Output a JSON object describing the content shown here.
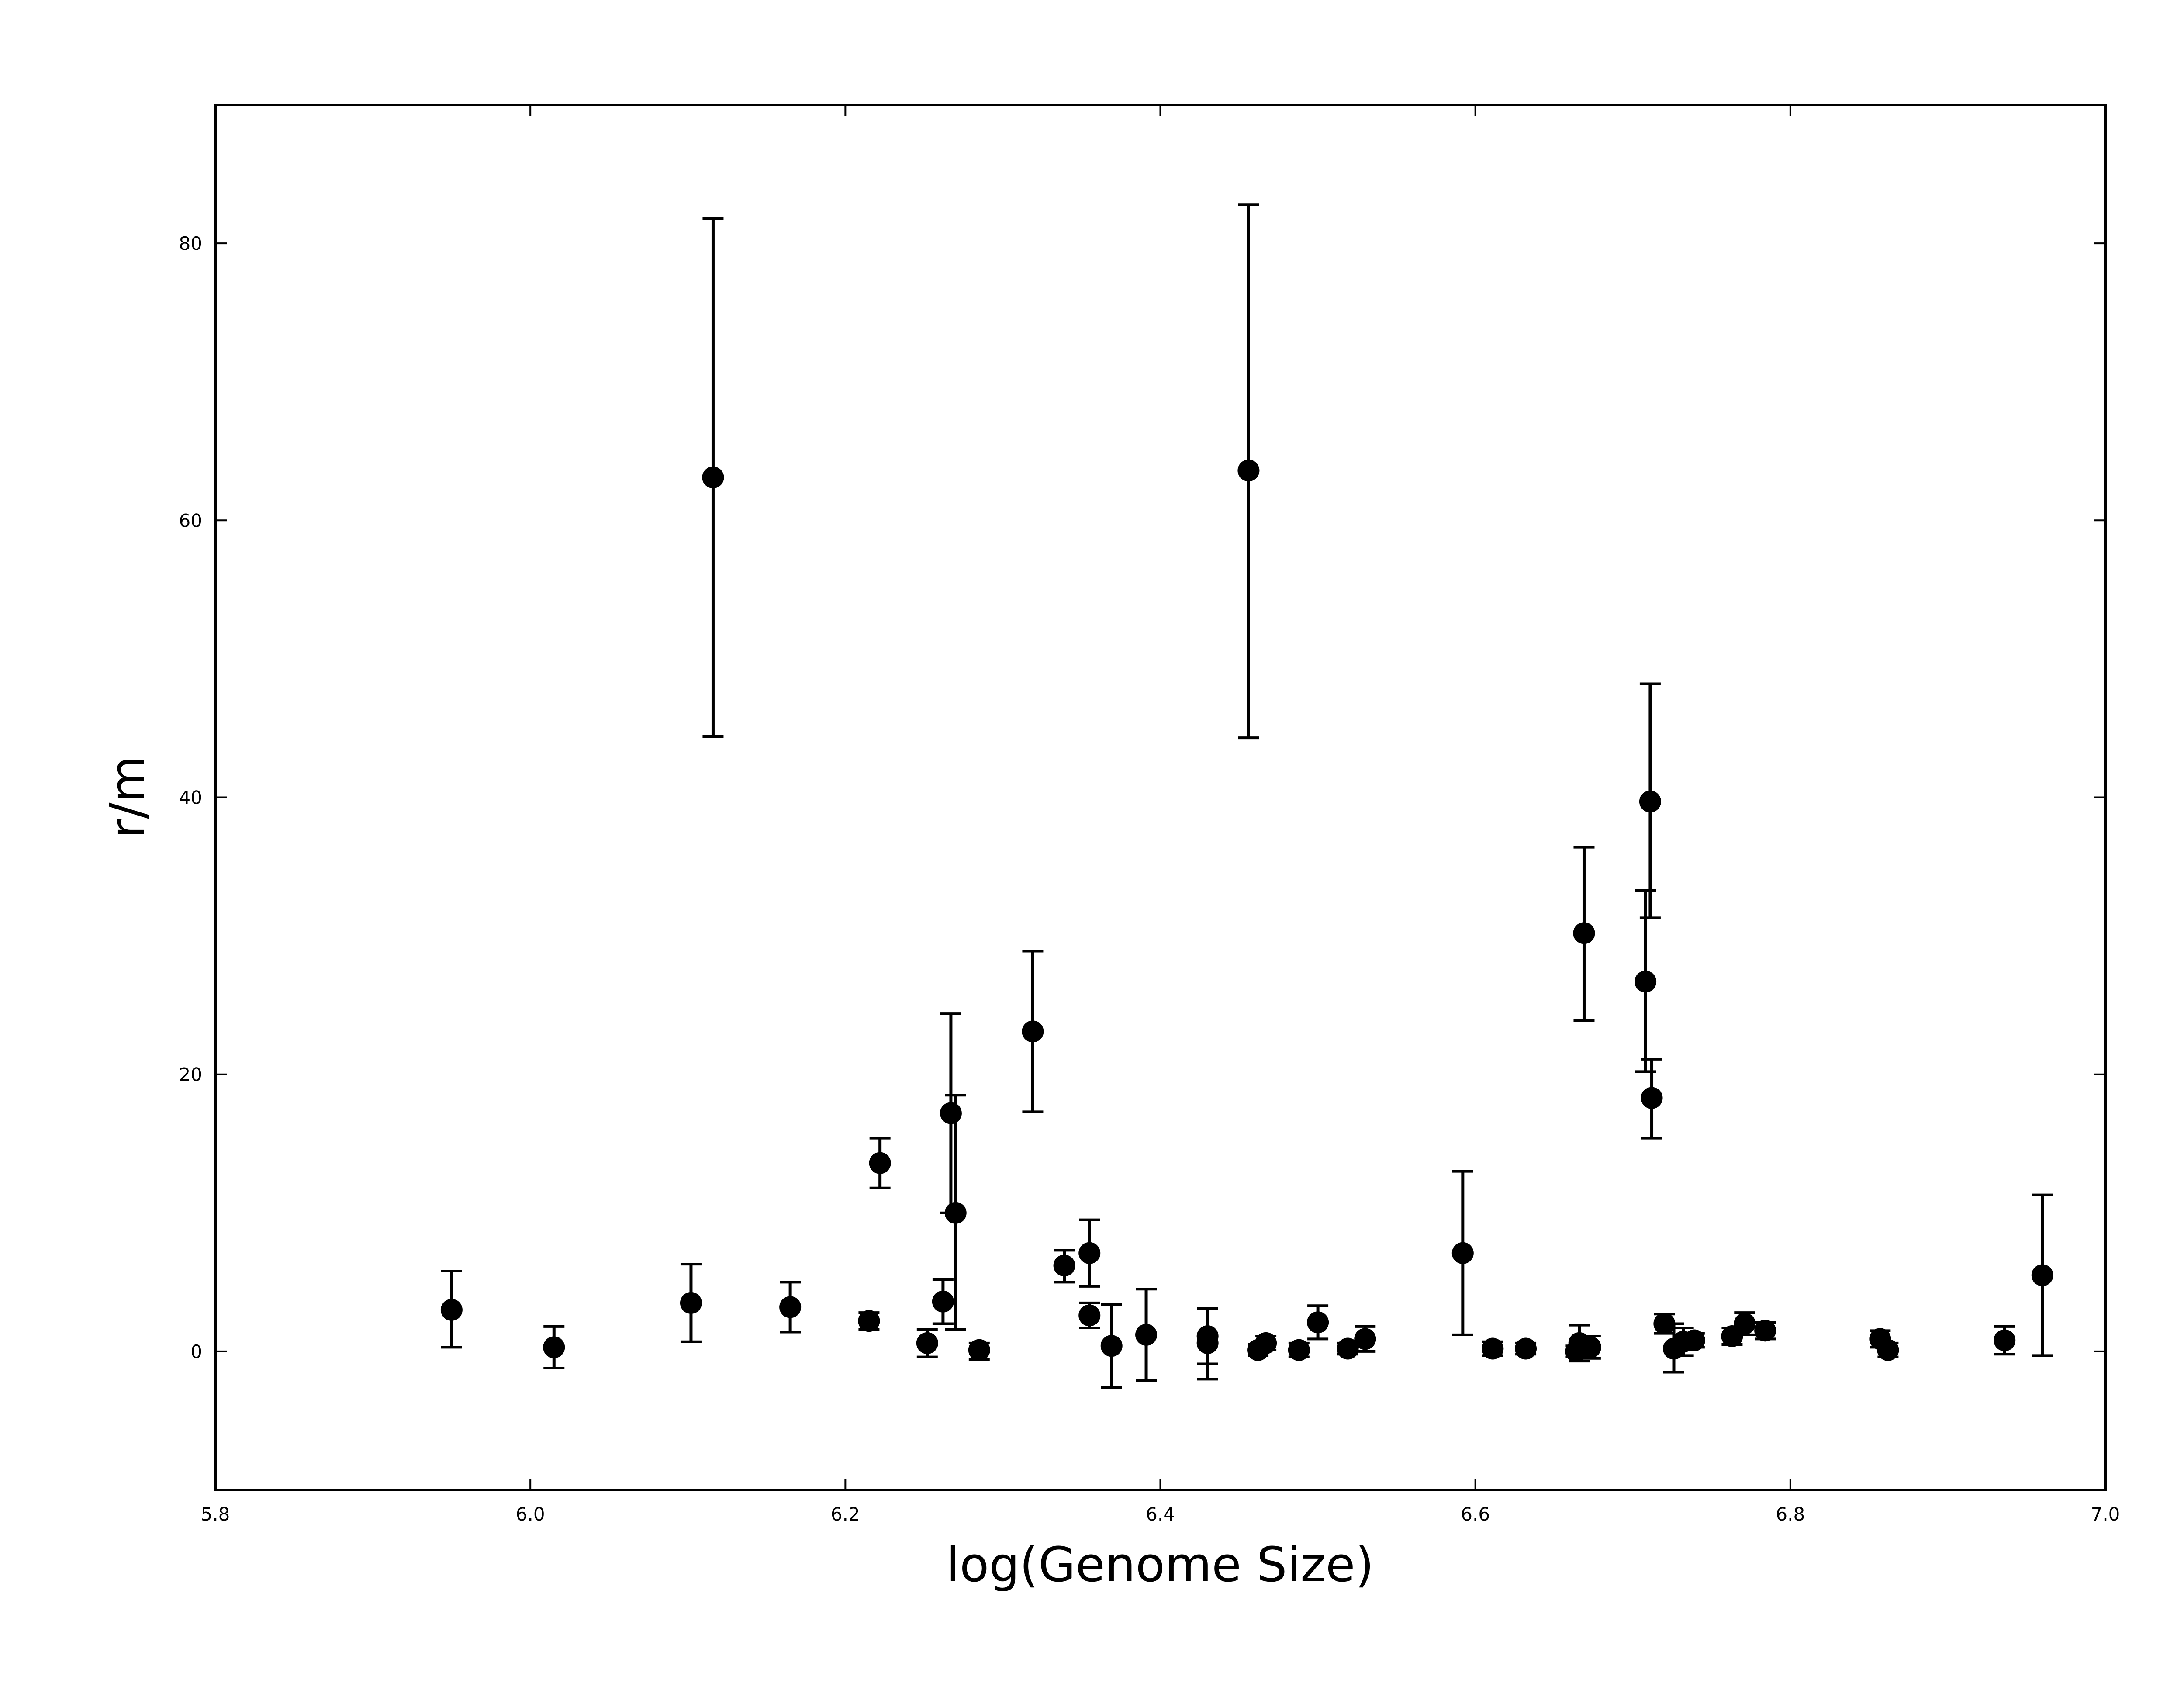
{
  "chart_data": {
    "type": "scatter",
    "title": "",
    "xlabel": "log(Genome Size)",
    "ylabel": "r/m",
    "xlim": [
      5.8,
      7.0
    ],
    "ylim": [
      -10,
      90
    ],
    "xticks": [
      5.8,
      6.0,
      6.2,
      6.4,
      6.6,
      6.8,
      7.0
    ],
    "xtick_labels": [
      "5.8",
      "6.0",
      "6.2",
      "6.4",
      "6.6",
      "6.8",
      "7.0"
    ],
    "yticks": [
      0,
      20,
      40,
      60,
      80
    ],
    "ytick_labels": [
      "0",
      "20",
      "40",
      "60",
      "80"
    ],
    "grid": false,
    "legend": "none",
    "marker_color": "#000000",
    "error_bars": true,
    "series": [
      {
        "points": [
          {
            "x": 5.95,
            "y": 3.0,
            "lo": 0.3,
            "hi": 5.8
          },
          {
            "x": 6.015,
            "y": 0.3,
            "lo": -1.2,
            "hi": 1.8
          },
          {
            "x": 6.102,
            "y": 3.5,
            "lo": 0.7,
            "hi": 6.3
          },
          {
            "x": 6.116,
            "y": 63.1,
            "lo": 44.4,
            "hi": 81.8
          },
          {
            "x": 6.165,
            "y": 3.2,
            "lo": 1.4,
            "hi": 5.0
          },
          {
            "x": 6.215,
            "y": 2.2,
            "lo": 1.6,
            "hi": 2.8
          },
          {
            "x": 6.222,
            "y": 13.6,
            "lo": 11.8,
            "hi": 15.4
          },
          {
            "x": 6.252,
            "y": 0.6,
            "lo": -0.4,
            "hi": 1.6
          },
          {
            "x": 6.262,
            "y": 3.6,
            "lo": 2.0,
            "hi": 5.2
          },
          {
            "x": 6.267,
            "y": 17.2,
            "lo": 10.0,
            "hi": 24.4
          },
          {
            "x": 6.27,
            "y": 10.0,
            "lo": 1.6,
            "hi": 18.5
          },
          {
            "x": 6.285,
            "y": 0.1,
            "lo": -0.6,
            "hi": 0.6
          },
          {
            "x": 6.319,
            "y": 23.1,
            "lo": 17.3,
            "hi": 28.9
          },
          {
            "x": 6.339,
            "y": 6.2,
            "lo": 5.0,
            "hi": 7.3
          },
          {
            "x": 6.355,
            "y": 7.1,
            "lo": 4.7,
            "hi": 9.5
          },
          {
            "x": 6.355,
            "y": 2.6,
            "lo": 1.7,
            "hi": 3.5
          },
          {
            "x": 6.369,
            "y": 0.4,
            "lo": -2.6,
            "hi": 3.4
          },
          {
            "x": 6.391,
            "y": 1.2,
            "lo": -2.1,
            "hi": 4.5
          },
          {
            "x": 6.43,
            "y": 1.1,
            "lo": -0.9,
            "hi": 3.1
          },
          {
            "x": 6.43,
            "y": 0.6,
            "lo": -2.0,
            "hi": 3.1
          },
          {
            "x": 6.456,
            "y": 63.6,
            "lo": 44.3,
            "hi": 82.8
          },
          {
            "x": 6.462,
            "y": 0.1,
            "lo": -0.3,
            "hi": 0.5
          },
          {
            "x": 6.467,
            "y": 0.6,
            "lo": 0.1,
            "hi": 1.1
          },
          {
            "x": 6.488,
            "y": 0.1,
            "lo": -0.4,
            "hi": 0.6
          },
          {
            "x": 6.5,
            "y": 2.1,
            "lo": 0.9,
            "hi": 3.3
          },
          {
            "x": 6.519,
            "y": 0.2,
            "lo": -0.2,
            "hi": 0.6
          },
          {
            "x": 6.53,
            "y": 0.9,
            "lo": 0.0,
            "hi": 1.8
          },
          {
            "x": 6.592,
            "y": 7.1,
            "lo": 1.2,
            "hi": 13.0
          },
          {
            "x": 6.611,
            "y": 0.2,
            "lo": -0.3,
            "hi": 0.7
          },
          {
            "x": 6.632,
            "y": 0.2,
            "lo": -0.2,
            "hi": 0.6
          },
          {
            "x": 6.664,
            "y": 0.0,
            "lo": -0.4,
            "hi": 0.4
          },
          {
            "x": 6.666,
            "y": 0.6,
            "lo": -0.7,
            "hi": 1.9
          },
          {
            "x": 6.669,
            "y": 30.2,
            "lo": 23.9,
            "hi": 36.4
          },
          {
            "x": 6.673,
            "y": 0.3,
            "lo": -0.5,
            "hi": 1.1
          },
          {
            "x": 6.708,
            "y": 26.7,
            "lo": 20.2,
            "hi": 33.3
          },
          {
            "x": 6.711,
            "y": 39.7,
            "lo": 31.3,
            "hi": 48.2
          },
          {
            "x": 6.712,
            "y": 18.3,
            "lo": 15.4,
            "hi": 21.1
          },
          {
            "x": 6.72,
            "y": 2.0,
            "lo": 1.3,
            "hi": 2.7
          },
          {
            "x": 6.726,
            "y": 0.2,
            "lo": -1.5,
            "hi": 2.0
          },
          {
            "x": 6.732,
            "y": 0.7,
            "lo": -0.3,
            "hi": 1.7
          },
          {
            "x": 6.739,
            "y": 0.8,
            "lo": 0.3,
            "hi": 1.3
          },
          {
            "x": 6.763,
            "y": 1.1,
            "lo": 0.5,
            "hi": 1.7
          },
          {
            "x": 6.771,
            "y": 2.0,
            "lo": 1.2,
            "hi": 2.8
          },
          {
            "x": 6.784,
            "y": 1.5,
            "lo": 0.9,
            "hi": 2.1
          },
          {
            "x": 6.857,
            "y": 0.9,
            "lo": 0.3,
            "hi": 1.5
          },
          {
            "x": 6.862,
            "y": 0.1,
            "lo": -0.4,
            "hi": 0.6
          },
          {
            "x": 6.936,
            "y": 0.8,
            "lo": -0.2,
            "hi": 1.8
          },
          {
            "x": 6.96,
            "y": 5.5,
            "lo": -0.3,
            "hi": 11.3
          }
        ]
      }
    ]
  }
}
